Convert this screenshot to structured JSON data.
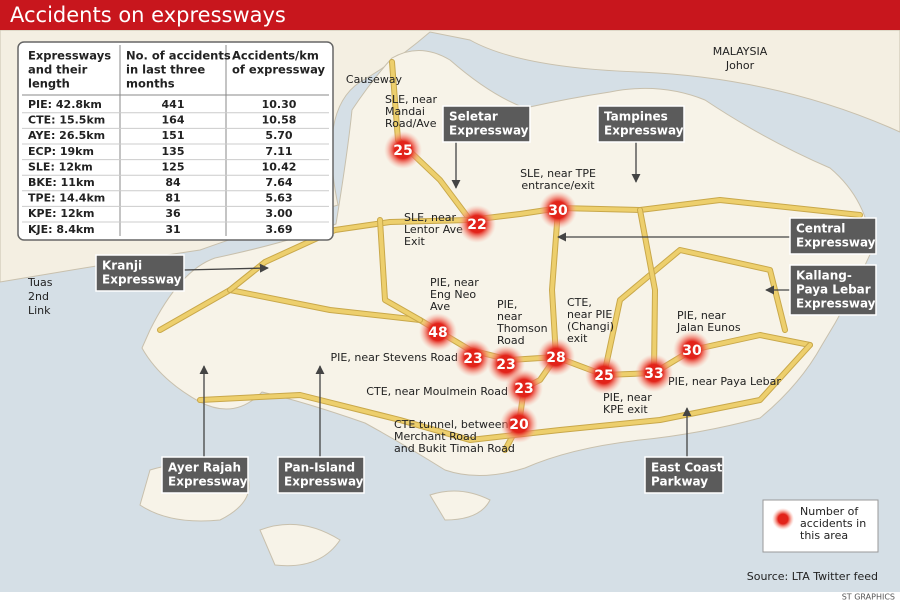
{
  "header": {
    "title": "Accidents on expressways"
  },
  "table": {
    "columns": [
      [
        "Expressways",
        "and their",
        "length"
      ],
      [
        "No. of accidents",
        "in last three",
        "months"
      ],
      [
        "Accidents/km",
        "of expressway"
      ]
    ],
    "rows": [
      [
        "PIE: 42.8km",
        "441",
        "10.30"
      ],
      [
        "CTE: 15.5km",
        "164",
        "10.58"
      ],
      [
        "AYE: 26.5km",
        "151",
        "5.70"
      ],
      [
        "ECP: 19km",
        "135",
        "7.11"
      ],
      [
        "SLE: 12km",
        "125",
        "10.42"
      ],
      [
        "BKE: 11km",
        "84",
        "7.64"
      ],
      [
        "TPE: 14.4km",
        "81",
        "5.63"
      ],
      [
        "KPE: 12km",
        "36",
        "3.00"
      ],
      [
        "KJE: 8.4km",
        "31",
        "3.69"
      ]
    ]
  },
  "map_labels": [
    [
      "MALAYSIA",
      "Johor"
    ],
    [
      "Causeway"
    ],
    [
      "Tuas",
      "2nd",
      "Link"
    ]
  ],
  "hotspots": [
    {
      "count": 25,
      "label": [
        "SLE, near",
        "Mandai",
        "Road/Ave"
      ]
    },
    {
      "count": 22,
      "label": [
        "SLE, near",
        "Lentor Ave",
        "Exit"
      ]
    },
    {
      "count": 30,
      "label": [
        "SLE, near TPE",
        "entrance/exit"
      ]
    },
    {
      "count": 48,
      "label": [
        "PIE, near",
        "Eng Neo",
        "Ave"
      ]
    },
    {
      "count": 23,
      "label": [
        "PIE, near Stevens Road"
      ]
    },
    {
      "count": 23,
      "label": [
        "PIE,",
        "near",
        "Thomson",
        "Road"
      ]
    },
    {
      "count": 28,
      "label": [
        "CTE,",
        "near PIE",
        "(Changi)",
        "exit"
      ]
    },
    {
      "count": 23,
      "label": [
        "CTE, near Moulmein Road"
      ]
    },
    {
      "count": 20,
      "label": [
        "CTE tunnel, between",
        "Merchant Road",
        "and Bukit Timah Road"
      ]
    },
    {
      "count": 25,
      "label": [
        "PIE, near",
        "KPE exit"
      ]
    },
    {
      "count": 33,
      "label": [
        "PIE, near Paya Lebar"
      ]
    },
    {
      "count": 30,
      "label": [
        "PIE, near",
        "Jalan Eunos"
      ]
    }
  ],
  "callouts": [
    [
      "Seletar",
      "Expressway"
    ],
    [
      "Tampines",
      "Expressway"
    ],
    [
      "Central",
      "Expressway"
    ],
    [
      "Kallang-",
      "Paya Lebar",
      "Expressway"
    ],
    [
      "Kranji",
      "Expressway"
    ],
    [
      "Ayer Rajah",
      "Expressway"
    ],
    [
      "Pan-Island",
      "Expressway"
    ],
    [
      "East Coast",
      "Parkway"
    ]
  ],
  "legend": [
    "Number of",
    "accidents in",
    "this area"
  ],
  "footer": {
    "source": "Source: LTA Twitter feed",
    "credit": "ST GRAPHICS"
  }
}
